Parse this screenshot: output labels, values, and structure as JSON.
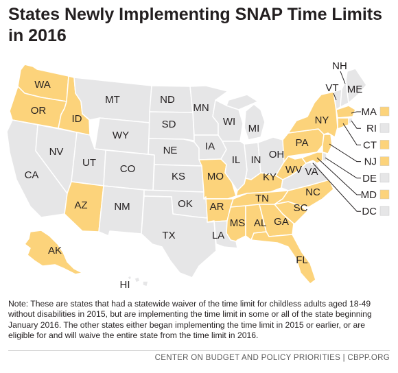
{
  "title": "States Newly Implementing SNAP Time Limits in 2016",
  "colors": {
    "implementing": "#fcd37b",
    "other": "#e6e6e7",
    "border": "#ffffff",
    "text": "#231f20"
  },
  "legend_meaning": {
    "implementing": "States newly implementing SNAP time limits in 2016",
    "other": "Other states"
  },
  "states": {
    "WA": "WA",
    "OR": "OR",
    "ID": "ID",
    "MT": "MT",
    "WY": "WY",
    "ND": "ND",
    "SD": "SD",
    "MN": "MN",
    "WI": "WI",
    "MI": "MI",
    "NV": "NV",
    "CA": "CA",
    "UT": "UT",
    "CO": "CO",
    "NE": "NE",
    "IA": "IA",
    "IL": "IL",
    "IN": "IN",
    "OH": "OH",
    "PA": "PA",
    "NY": "NY",
    "AZ": "AZ",
    "NM": "NM",
    "KS": "KS",
    "MO": "MO",
    "KY": "KY",
    "WV": "WV",
    "VA": "VA",
    "OK": "OK",
    "AR": "AR",
    "TN": "TN",
    "NC": "NC",
    "TX": "TX",
    "LA": "LA",
    "MS": "MS",
    "AL": "AL",
    "GA": "GA",
    "SC": "SC",
    "FL": "FL",
    "AK": "AK",
    "HI": "HI",
    "NH": "NH",
    "VT": "VT",
    "ME": "ME"
  },
  "small_states": [
    {
      "code": "MA",
      "status": "implementing"
    },
    {
      "code": "RI",
      "status": "other"
    },
    {
      "code": "CT",
      "status": "implementing"
    },
    {
      "code": "NJ",
      "status": "implementing"
    },
    {
      "code": "DE",
      "status": "other"
    },
    {
      "code": "MD",
      "status": "implementing"
    },
    {
      "code": "DC",
      "status": "other"
    }
  ],
  "note": "Note: These are states that had a statewide waiver of the time limit for childless adults aged 18-49 without disabilities in 2015, but are implementing the time limit in some or all of the state beginning January 2016. The other states either began implementing the time limit in 2015 or earlier, or are eligible for and will waive the entire state from the time limit in 2016.",
  "footer": "CENTER ON BUDGET AND POLICY PRIORITIES | CBPP.ORG"
}
